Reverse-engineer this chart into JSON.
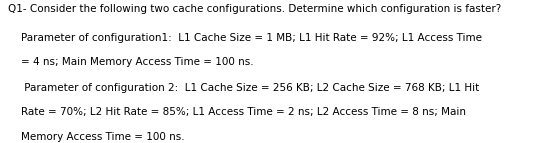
{
  "title_line": "Q1- Consider the following two cache configurations. Determine which configuration is faster?",
  "config1_line1": "    Parameter of configuration1:  L1 Cache Size = 1 MB; L1 Hit Rate = 92%; L1 Access Time",
  "config1_line2": "    = 4 ns; Main Memory Access Time = 100 ns.",
  "config2_line1": "     Parameter of configuration 2:  L1 Cache Size = 256 KB; L2 Cache Size = 768 KB; L1 Hit",
  "config2_line2": "    Rate = 70%; L2 Hit Rate = 85%; L1 Access Time = 2 ns; L2 Access Time = 8 ns; Main",
  "config2_line3": "    Memory Access Time = 100 ns.",
  "background_color": "#ffffff",
  "text_color": "#000000",
  "fontsize": 7.5
}
